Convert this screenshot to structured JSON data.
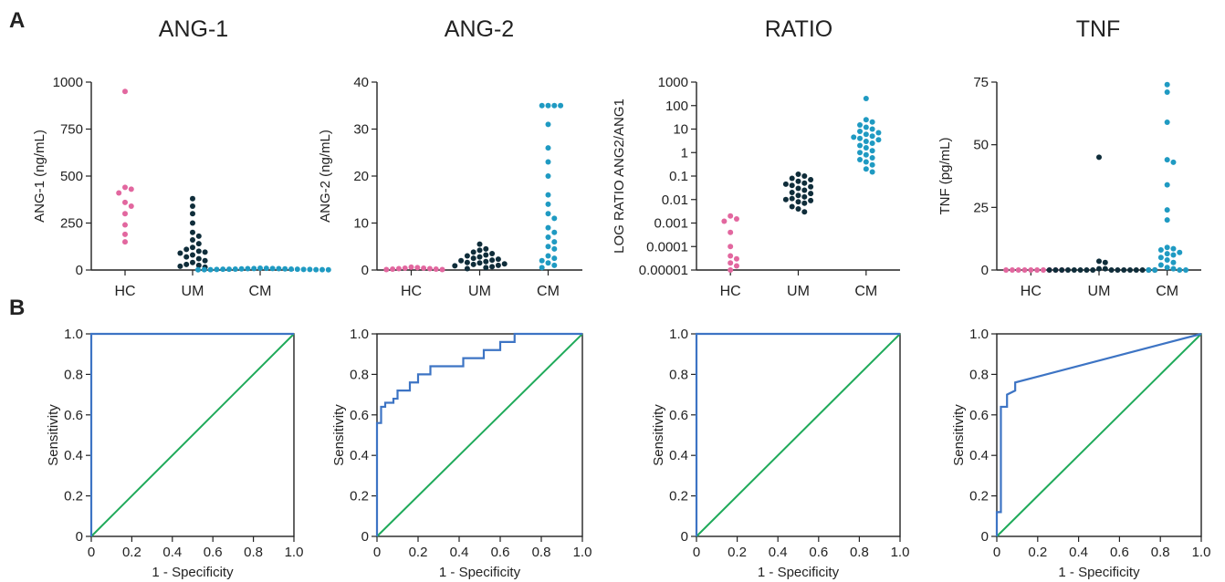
{
  "panel_labels": {
    "a": "A",
    "b": "B"
  },
  "colors": {
    "hc": "#e2679f",
    "um": "#0f2d3a",
    "cm": "#1f9ac2",
    "roc": "#3d74c4",
    "diagonal": "#1faa5a",
    "axis": "#222222"
  },
  "chart_data": [
    {
      "type": "scatter",
      "title": "ANG-1",
      "ylabel": "ANG-1 (ng/mL)",
      "xlabel": "",
      "scale": "linear",
      "ylim": [
        0,
        1000
      ],
      "yticks": [
        0,
        250,
        500,
        750,
        1000
      ],
      "yticklabels": [
        "0",
        "250",
        "500",
        "750",
        "1000"
      ],
      "categories": [
        "HC",
        "UM",
        "CM"
      ],
      "series": [
        {
          "category": "HC",
          "values": [
            950,
            440,
            430,
            410,
            360,
            340,
            300,
            240,
            190,
            150
          ]
        },
        {
          "category": "UM",
          "values": [
            380,
            340,
            300,
            250,
            200,
            180,
            160,
            140,
            120,
            110,
            100,
            95,
            90,
            80,
            70,
            60,
            50,
            40,
            30,
            25,
            20,
            15
          ]
        },
        {
          "category": "CM",
          "values": [
            10,
            9,
            8,
            8,
            7,
            7,
            6,
            6,
            5,
            5,
            4,
            4,
            4,
            3,
            3,
            3,
            2,
            2,
            2,
            2,
            1,
            1
          ]
        }
      ]
    },
    {
      "type": "scatter",
      "title": "ANG-2",
      "ylabel": "ANG-2 (ng/mL)",
      "xlabel": "",
      "scale": "linear",
      "ylim": [
        0,
        40
      ],
      "yticks": [
        0,
        10,
        20,
        30,
        40
      ],
      "yticklabels": [
        "0",
        "10",
        "20",
        "30",
        "40"
      ],
      "categories": [
        "HC",
        "UM",
        "CM"
      ],
      "series": [
        {
          "category": "HC",
          "values": [
            0.6,
            0.5,
            0.4,
            0.4,
            0.3,
            0.3,
            0.2,
            0.2,
            0.1,
            0.1
          ]
        },
        {
          "category": "UM",
          "values": [
            5.5,
            4.5,
            4.2,
            3.8,
            3.5,
            3.2,
            3.0,
            2.8,
            2.5,
            2.3,
            2.1,
            2.0,
            1.8,
            1.6,
            1.5,
            1.3,
            1.2,
            1.0,
            0.9,
            0.7,
            0.5,
            0.3
          ]
        },
        {
          "category": "CM",
          "values": [
            35,
            35,
            35,
            35,
            31,
            26,
            23,
            20,
            16,
            14,
            12,
            11,
            9,
            8,
            7,
            6,
            5,
            4.5,
            3,
            2.5,
            2,
            1.5,
            1,
            0.5
          ]
        }
      ]
    },
    {
      "type": "scatter",
      "title": "RATIO",
      "ylabel": "LOG RATIO ANG2/ANG1",
      "xlabel": "",
      "scale": "log",
      "ylim": [
        1e-05,
        1000
      ],
      "yticks": [
        1e-05,
        0.0001,
        0.001,
        0.01,
        0.1,
        1,
        10,
        100,
        1000
      ],
      "yticklabels": [
        "0.00001",
        "0.0001",
        "0.001",
        "0.01",
        "0.1",
        "1",
        "10",
        "100",
        "1000"
      ],
      "categories": [
        "HC",
        "UM",
        "CM"
      ],
      "series": [
        {
          "category": "HC",
          "values": [
            0.002,
            0.0015,
            0.0012,
            0.0004,
            0.0001,
            4e-05,
            3e-05,
            2e-05,
            1.5e-05,
            1e-05
          ]
        },
        {
          "category": "UM",
          "values": [
            0.12,
            0.1,
            0.08,
            0.07,
            0.06,
            0.05,
            0.045,
            0.04,
            0.035,
            0.03,
            0.025,
            0.02,
            0.018,
            0.015,
            0.013,
            0.011,
            0.01,
            0.009,
            0.008,
            0.007,
            0.005,
            0.004,
            0.003
          ]
        },
        {
          "category": "CM",
          "values": [
            200,
            25,
            20,
            15,
            12,
            10,
            8,
            7,
            6,
            5,
            4.5,
            4,
            3.5,
            3,
            2.5,
            2,
            1.6,
            1.2,
            1,
            0.8,
            0.6,
            0.5,
            0.4,
            0.3,
            0.2,
            0.15
          ]
        }
      ]
    },
    {
      "type": "scatter",
      "title": "TNF",
      "ylabel": "TNF (pg/mL)",
      "xlabel": "",
      "scale": "linear",
      "ylim": [
        0,
        75
      ],
      "yticks": [
        0,
        25,
        50,
        75
      ],
      "yticklabels": [
        "0",
        "25",
        "50",
        "75"
      ],
      "categories": [
        "HC",
        "UM",
        "CM"
      ],
      "series": [
        {
          "category": "HC",
          "values": [
            0,
            0,
            0,
            0,
            0,
            0,
            0,
            0,
            0,
            0
          ]
        },
        {
          "category": "UM",
          "values": [
            45,
            3.5,
            3,
            0.5,
            0.5,
            0,
            0,
            0,
            0,
            0,
            0,
            0,
            0,
            0,
            0,
            0,
            0,
            0,
            0,
            0,
            0
          ]
        },
        {
          "category": "CM",
          "values": [
            74,
            71,
            59,
            44,
            43,
            34,
            24,
            20,
            9,
            8.5,
            8,
            7,
            6.5,
            6,
            5,
            4,
            3,
            2,
            1,
            0.5,
            0,
            0,
            0,
            0
          ]
        }
      ]
    },
    {
      "type": "line",
      "xlabel": "1 - Specificity",
      "ylabel": "Sensitivity",
      "xlim": [
        0,
        1
      ],
      "ylim": [
        0,
        1
      ],
      "xticks": [
        0,
        0.2,
        0.4,
        0.6,
        0.8,
        1.0
      ],
      "xticklabels": [
        "0",
        "0.2",
        "0.4",
        "0.6",
        "0.8",
        "1.0"
      ],
      "yticks": [
        0,
        0.2,
        0.4,
        0.6,
        0.8,
        1.0
      ],
      "yticklabels": [
        "0",
        "0.2",
        "0.4",
        "0.6",
        "0.8",
        "1.0"
      ],
      "roc": {
        "x": [
          0,
          0,
          1
        ],
        "y": [
          0,
          1,
          1
        ]
      },
      "diagonal": {
        "x": [
          0,
          1
        ],
        "y": [
          0,
          1
        ]
      }
    },
    {
      "type": "line",
      "xlabel": "1 - Specificity",
      "ylabel": "Sensitivity",
      "xlim": [
        0,
        1
      ],
      "ylim": [
        0,
        1
      ],
      "xticks": [
        0,
        0.2,
        0.4,
        0.6,
        0.8,
        1.0
      ],
      "xticklabels": [
        "0",
        "0.2",
        "0.4",
        "0.6",
        "0.8",
        "1.0"
      ],
      "yticks": [
        0,
        0.2,
        0.4,
        0.6,
        0.8,
        1.0
      ],
      "yticklabels": [
        "0",
        "0.2",
        "0.4",
        "0.6",
        "0.8",
        "1.0"
      ],
      "roc": {
        "x": [
          0,
          0,
          0.02,
          0.02,
          0.04,
          0.04,
          0.08,
          0.08,
          0.1,
          0.1,
          0.12,
          0.12,
          0.16,
          0.16,
          0.2,
          0.2,
          0.22,
          0.22,
          0.26,
          0.26,
          0.32,
          0.32,
          0.42,
          0.42,
          0.52,
          0.52,
          0.6,
          0.6,
          0.67,
          0.67,
          1.0
        ],
        "y": [
          0,
          0.56,
          0.56,
          0.64,
          0.64,
          0.66,
          0.66,
          0.68,
          0.68,
          0.72,
          0.72,
          0.72,
          0.72,
          0.76,
          0.76,
          0.8,
          0.8,
          0.8,
          0.8,
          0.84,
          0.84,
          0.84,
          0.84,
          0.88,
          0.88,
          0.92,
          0.92,
          0.96,
          0.96,
          1.0,
          1.0
        ]
      },
      "diagonal": {
        "x": [
          0,
          1
        ],
        "y": [
          0,
          1
        ]
      }
    },
    {
      "type": "line",
      "xlabel": "1 - Specificity",
      "ylabel": "Sensitivity",
      "xlim": [
        0,
        1
      ],
      "ylim": [
        0,
        1
      ],
      "xticks": [
        0,
        0.2,
        0.4,
        0.6,
        0.8,
        1.0
      ],
      "xticklabels": [
        "0",
        "0.2",
        "0.4",
        "0.6",
        "0.8",
        "1.0"
      ],
      "yticks": [
        0,
        0.2,
        0.4,
        0.6,
        0.8,
        1.0
      ],
      "yticklabels": [
        "0",
        "0.2",
        "0.4",
        "0.6",
        "0.8",
        "1.0"
      ],
      "roc": {
        "x": [
          0,
          0,
          1
        ],
        "y": [
          0,
          1,
          1
        ]
      },
      "diagonal": {
        "x": [
          0,
          1
        ],
        "y": [
          0,
          1
        ]
      }
    },
    {
      "type": "line",
      "xlabel": "1 - Specificity",
      "ylabel": "Sensitivity",
      "xlim": [
        0,
        1
      ],
      "ylim": [
        0,
        1
      ],
      "xticks": [
        0,
        0.2,
        0.4,
        0.6,
        0.8,
        1.0
      ],
      "xticklabels": [
        "0",
        "0.2",
        "0.4",
        "0.6",
        "0.8",
        "1.0"
      ],
      "yticks": [
        0,
        0.2,
        0.4,
        0.6,
        0.8,
        1.0
      ],
      "yticklabels": [
        "0",
        "0.2",
        "0.4",
        "0.6",
        "0.8",
        "1.0"
      ],
      "roc": {
        "x": [
          0,
          0,
          0.02,
          0.02,
          0.05,
          0.05,
          0.09,
          0.09,
          1.0
        ],
        "y": [
          0,
          0.12,
          0.12,
          0.64,
          0.64,
          0.7,
          0.72,
          0.76,
          1.0
        ]
      },
      "diagonal": {
        "x": [
          0,
          1
        ],
        "y": [
          0,
          1
        ]
      }
    }
  ]
}
